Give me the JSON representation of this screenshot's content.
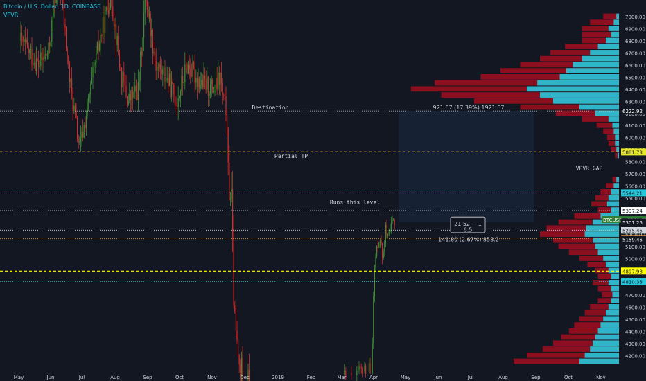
{
  "header": {
    "symbol_title": "Bitcoin / U.S. Dollar, 1D, COINBASE",
    "indicator": "VPVR"
  },
  "colors": {
    "background": "#131722",
    "bull": "#3f8f32",
    "bear": "#d32f2f",
    "vpvr_up": "#26c6da",
    "vpvr_down": "#8b0f1f",
    "grid_label": "#d1d4dc"
  },
  "chart_data": {
    "type": "candlestick",
    "title": "Bitcoin / U.S. Dollar, 1D, COINBASE",
    "ylim": [
      4150,
      7080
    ],
    "y_ticks": [
      7000,
      6900,
      6800,
      6700,
      6600,
      6500,
      6400,
      6300,
      6200,
      6100,
      6000,
      5900,
      5800,
      5700,
      5600,
      5500,
      5400,
      5300,
      5200,
      5100,
      5000,
      4900,
      4800,
      4700,
      4600,
      4500,
      4400,
      4300,
      4200
    ],
    "x_ticks": [
      {
        "label": "May",
        "x": 27
      },
      {
        "label": "Jun",
        "x": 73
      },
      {
        "label": "Jul",
        "x": 118
      },
      {
        "label": "Aug",
        "x": 166
      },
      {
        "label": "Sep",
        "x": 213
      },
      {
        "label": "Oct",
        "x": 259
      },
      {
        "label": "Nov",
        "x": 306
      },
      {
        "label": "Dec",
        "x": 353
      },
      {
        "label": "2019",
        "x": 401
      },
      {
        "label": "Feb",
        "x": 449
      },
      {
        "label": "Mar",
        "x": 493
      },
      {
        "label": "Apr",
        "x": 539
      },
      {
        "label": "May",
        "x": 585
      },
      {
        "label": "Jun",
        "x": 632
      },
      {
        "label": "Jul",
        "x": 679
      },
      {
        "label": "Aug",
        "x": 726
      },
      {
        "label": "Sep",
        "x": 773
      },
      {
        "label": "Oct",
        "x": 820
      },
      {
        "label": "Nov",
        "x": 867
      }
    ],
    "candles_summary": [
      {
        "period": "Apr–Jul 2018",
        "range": [
          5800,
          7000
        ]
      },
      {
        "period": "Aug–Nov 2018",
        "range": [
          6200,
          6600
        ]
      },
      {
        "period": "Nov 2018 drop",
        "from": 6300,
        "to": 4150
      },
      {
        "period": "Apr 2019 rally",
        "range": [
          4150,
          5300
        ]
      }
    ],
    "price_levels": [
      {
        "price": 6221.0,
        "label": "6221.00",
        "style": "dotted",
        "color": "#d1d4dc",
        "tag": "#d1d4dc",
        "tagtext": "#131722"
      },
      {
        "price": 6222.92,
        "label": "6222.92",
        "style": "none",
        "color": "#d1d4dc",
        "tag": "#131722",
        "tagtext": "#ffffff"
      },
      {
        "price": 5881.73,
        "label": "5881.73",
        "style": "dashed",
        "color": "#e8e82a",
        "tag": "#e8e82a",
        "tagtext": "#131722"
      },
      {
        "price": 5544.21,
        "label": "5544.21",
        "style": "dotted",
        "color": "#26c6da",
        "tag": "#26c6da",
        "tagtext": "#131722"
      },
      {
        "price": 5397.24,
        "label": "5397.24",
        "style": "dotted",
        "color": "#d1d4dc",
        "tag": "#ffffff",
        "tagtext": "#131722"
      },
      {
        "price": 5322.77,
        "label": "BTCUSD · 5322.77",
        "style": "none",
        "color": "#3f8f32",
        "tag": "#2e7d32",
        "tagtext": "#ffffff"
      },
      {
        "price": 5301.25,
        "label": "5301.25",
        "style": "none",
        "color": "#d1d4dc",
        "tag": "#131722",
        "tagtext": "#ffffff"
      },
      {
        "price": 5235.45,
        "label": "5235.45",
        "style": "dotted",
        "color": "#d1d4dc",
        "tag": "#d1d4dc",
        "tagtext": "#131722"
      },
      {
        "price": 5166.64,
        "label": "5166.64",
        "style": "dotted",
        "color": "#f0a030",
        "tag": "#f0a030",
        "tagtext": "#131722"
      },
      {
        "price": 5159.45,
        "label": "5159.45",
        "style": "none",
        "color": "#d1d4dc",
        "tag": "#131722",
        "tagtext": "#ffffff"
      },
      {
        "price": 4897.98,
        "label": "4897.98",
        "style": "dashed",
        "color": "#ffff00",
        "tag": "#ffff00",
        "tagtext": "#131722"
      },
      {
        "price": 4810.33,
        "label": "4810.33",
        "style": "dotted",
        "color": "#26c6da",
        "tag": "#26c6da",
        "tagtext": "#131722"
      }
    ],
    "annotations": [
      {
        "text": "Destination",
        "price": 6250
      },
      {
        "text": "Partial TP",
        "price": 5850
      },
      {
        "text": "Runs this level",
        "price": 5470
      },
      {
        "text": "VPVR GAP",
        "price": 5750
      },
      {
        "text": "921.67 (17.39%) 1921.67",
        "price": 6250
      },
      {
        "text": "21.52 ~ 1",
        "price": 5290
      },
      {
        "text": "6.5",
        "price": 5240
      },
      {
        "text": "141.80 (2.67%) 858.2",
        "price": 5160
      }
    ],
    "vpvr": [
      {
        "price": 7000,
        "up": 2,
        "down": 10
      },
      {
        "price": 6950,
        "up": 4,
        "down": 18
      },
      {
        "price": 6900,
        "up": 8,
        "down": 20
      },
      {
        "price": 6850,
        "up": 6,
        "down": 22
      },
      {
        "price": 6800,
        "up": 10,
        "down": 18
      },
      {
        "price": 6750,
        "up": 16,
        "down": 25
      },
      {
        "price": 6700,
        "up": 22,
        "down": 30
      },
      {
        "price": 6650,
        "up": 28,
        "down": 32
      },
      {
        "price": 6600,
        "up": 35,
        "down": 40
      },
      {
        "price": 6550,
        "up": 40,
        "down": 50
      },
      {
        "price": 6500,
        "up": 45,
        "down": 60
      },
      {
        "price": 6450,
        "up": 62,
        "down": 78
      },
      {
        "price": 6400,
        "up": 70,
        "down": 88
      },
      {
        "price": 6350,
        "up": 60,
        "down": 75
      },
      {
        "price": 6300,
        "up": 50,
        "down": 60
      },
      {
        "price": 6250,
        "up": 30,
        "down": 45
      },
      {
        "price": 6200,
        "up": 18,
        "down": 30
      },
      {
        "price": 6150,
        "up": 8,
        "down": 20
      },
      {
        "price": 6100,
        "up": 5,
        "down": 12
      },
      {
        "price": 6050,
        "up": 4,
        "down": 8
      },
      {
        "price": 6000,
        "up": 3,
        "down": 6
      },
      {
        "price": 5950,
        "up": 3,
        "down": 5
      },
      {
        "price": 5900,
        "up": 2,
        "down": 4
      },
      {
        "price": 5850,
        "up": 1,
        "down": 2
      },
      {
        "price": 5650,
        "up": 2,
        "down": 3
      },
      {
        "price": 5600,
        "up": 4,
        "down": 6
      },
      {
        "price": 5550,
        "up": 6,
        "down": 8
      },
      {
        "price": 5500,
        "up": 8,
        "down": 10
      },
      {
        "price": 5450,
        "up": 9,
        "down": 12
      },
      {
        "price": 5400,
        "up": 6,
        "down": 10
      },
      {
        "price": 5350,
        "up": 14,
        "down": 20
      },
      {
        "price": 5300,
        "up": 20,
        "down": 26
      },
      {
        "price": 5250,
        "up": 25,
        "down": 30
      },
      {
        "price": 5200,
        "up": 26,
        "down": 34
      },
      {
        "price": 5150,
        "up": 20,
        "down": 30
      },
      {
        "price": 5100,
        "up": 18,
        "down": 28
      },
      {
        "price": 5050,
        "up": 16,
        "down": 22
      },
      {
        "price": 5000,
        "up": 12,
        "down": 18
      },
      {
        "price": 4950,
        "up": 10,
        "down": 14
      },
      {
        "price": 4900,
        "up": 8,
        "down": 10
      },
      {
        "price": 4850,
        "up": 6,
        "down": 10
      },
      {
        "price": 4800,
        "up": 8,
        "down": 12
      },
      {
        "price": 4750,
        "up": 6,
        "down": 10
      },
      {
        "price": 4700,
        "up": 5,
        "down": 8
      },
      {
        "price": 4650,
        "up": 6,
        "down": 10
      },
      {
        "price": 4600,
        "up": 8,
        "down": 14
      },
      {
        "price": 4550,
        "up": 10,
        "down": 16
      },
      {
        "price": 4500,
        "up": 12,
        "down": 18
      },
      {
        "price": 4450,
        "up": 14,
        "down": 20
      },
      {
        "price": 4400,
        "up": 16,
        "down": 22
      },
      {
        "price": 4350,
        "up": 18,
        "down": 26
      },
      {
        "price": 4300,
        "up": 20,
        "down": 30
      },
      {
        "price": 4250,
        "up": 22,
        "down": 36
      },
      {
        "price": 4200,
        "up": 26,
        "down": 44
      },
      {
        "price": 4150,
        "up": 30,
        "down": 50
      }
    ]
  }
}
